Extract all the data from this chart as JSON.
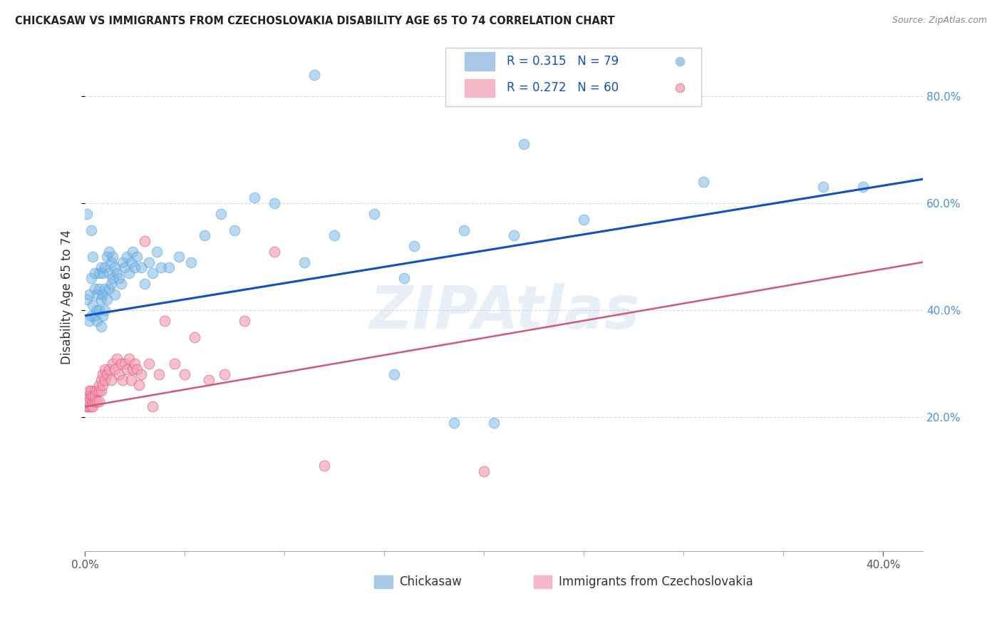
{
  "title": "CHICKASAW VS IMMIGRANTS FROM CZECHOSLOVAKIA DISABILITY AGE 65 TO 74 CORRELATION CHART",
  "source": "Source: ZipAtlas.com",
  "ylabel": "Disability Age 65 to 74",
  "series1_color": "#7ab8e8",
  "series2_color": "#f4a0b8",
  "series1_edge": "#5a9fd4",
  "series2_edge": "#e0607a",
  "trendline1_color": "#1050c0",
  "trendline2_color": "#d05878",
  "watermark_text": "ZIPAtlas",
  "watermark_color": "#c8d8ea",
  "watermark_alpha": 0.4,
  "background_color": "#ffffff",
  "grid_color": "#d8d8d8",
  "xlim": [
    0.0,
    0.42
  ],
  "ylim": [
    -0.05,
    0.9
  ],
  "legend_color1": "#a8c8e8",
  "legend_color2": "#f4b8c8",
  "right_tick_color": "#4a90d9",
  "chickasaw_x": [
    0.001,
    0.001,
    0.002,
    0.002,
    0.003,
    0.003,
    0.003,
    0.004,
    0.004,
    0.005,
    0.005,
    0.005,
    0.006,
    0.006,
    0.006,
    0.007,
    0.007,
    0.007,
    0.008,
    0.008,
    0.008,
    0.009,
    0.009,
    0.009,
    0.01,
    0.01,
    0.01,
    0.011,
    0.011,
    0.012,
    0.012,
    0.012,
    0.013,
    0.013,
    0.014,
    0.014,
    0.015,
    0.015,
    0.016,
    0.017,
    0.018,
    0.019,
    0.02,
    0.021,
    0.022,
    0.023,
    0.024,
    0.025,
    0.026,
    0.028,
    0.03,
    0.032,
    0.034,
    0.036,
    0.038,
    0.042,
    0.047,
    0.053,
    0.06,
    0.068,
    0.075,
    0.085,
    0.095,
    0.11,
    0.125,
    0.145,
    0.165,
    0.19,
    0.215,
    0.25,
    0.115,
    0.16,
    0.185,
    0.31,
    0.37,
    0.155,
    0.205,
    0.39,
    0.22
  ],
  "chickasaw_y": [
    0.42,
    0.58,
    0.38,
    0.43,
    0.39,
    0.46,
    0.55,
    0.41,
    0.5,
    0.39,
    0.44,
    0.47,
    0.38,
    0.43,
    0.4,
    0.4,
    0.44,
    0.47,
    0.37,
    0.42,
    0.48,
    0.39,
    0.43,
    0.47,
    0.4,
    0.44,
    0.48,
    0.42,
    0.5,
    0.44,
    0.47,
    0.51,
    0.45,
    0.49,
    0.46,
    0.5,
    0.43,
    0.48,
    0.47,
    0.46,
    0.45,
    0.49,
    0.48,
    0.5,
    0.47,
    0.49,
    0.51,
    0.48,
    0.5,
    0.48,
    0.45,
    0.49,
    0.47,
    0.51,
    0.48,
    0.48,
    0.5,
    0.49,
    0.54,
    0.58,
    0.55,
    0.61,
    0.6,
    0.49,
    0.54,
    0.58,
    0.52,
    0.55,
    0.54,
    0.57,
    0.84,
    0.46,
    0.19,
    0.64,
    0.63,
    0.28,
    0.19,
    0.63,
    0.71
  ],
  "czech_x": [
    0.001,
    0.001,
    0.001,
    0.001,
    0.002,
    0.002,
    0.002,
    0.002,
    0.003,
    0.003,
    0.003,
    0.004,
    0.004,
    0.004,
    0.005,
    0.005,
    0.005,
    0.006,
    0.006,
    0.007,
    0.007,
    0.007,
    0.008,
    0.008,
    0.009,
    0.009,
    0.01,
    0.01,
    0.011,
    0.012,
    0.013,
    0.014,
    0.015,
    0.016,
    0.017,
    0.018,
    0.019,
    0.02,
    0.021,
    0.022,
    0.023,
    0.024,
    0.025,
    0.026,
    0.027,
    0.028,
    0.03,
    0.032,
    0.034,
    0.037,
    0.04,
    0.045,
    0.05,
    0.055,
    0.062,
    0.07,
    0.08,
    0.095,
    0.12,
    0.2
  ],
  "czech_y": [
    0.22,
    0.23,
    0.24,
    0.22,
    0.24,
    0.22,
    0.25,
    0.23,
    0.24,
    0.22,
    0.25,
    0.23,
    0.24,
    0.22,
    0.25,
    0.23,
    0.24,
    0.25,
    0.23,
    0.25,
    0.23,
    0.26,
    0.25,
    0.27,
    0.26,
    0.28,
    0.27,
    0.29,
    0.28,
    0.29,
    0.27,
    0.3,
    0.29,
    0.31,
    0.28,
    0.3,
    0.27,
    0.3,
    0.29,
    0.31,
    0.27,
    0.29,
    0.3,
    0.29,
    0.26,
    0.28,
    0.53,
    0.3,
    0.22,
    0.28,
    0.38,
    0.3,
    0.28,
    0.35,
    0.27,
    0.28,
    0.38,
    0.51,
    0.11,
    0.1
  ],
  "trendline1_x": [
    0.0,
    0.42
  ],
  "trendline1_y": [
    0.39,
    0.645
  ],
  "trendline2_x": [
    0.0,
    0.42
  ],
  "trendline2_y": [
    0.22,
    0.49
  ]
}
